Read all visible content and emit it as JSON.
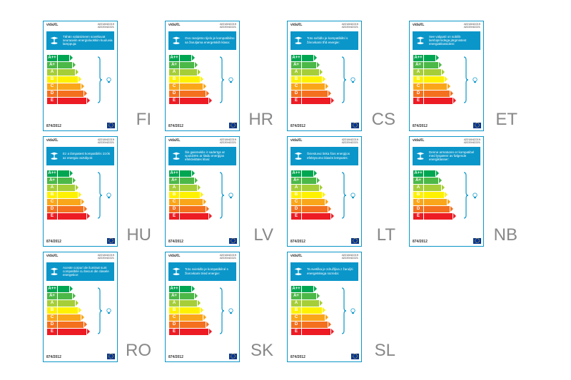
{
  "brand": "vidaXL",
  "codes_line1": "42218/42219",
  "codes_line2": "42220/42221",
  "regulation": "874/2012",
  "rating_classes": [
    {
      "letter": "A++",
      "bg": "#00a651",
      "arrow_bg": "#00a651",
      "arrow_width": 16
    },
    {
      "letter": "A+",
      "bg": "#4cb848",
      "arrow_bg": "#4cb848",
      "arrow_width": 20
    },
    {
      "letter": "A",
      "bg": "#a6ce39",
      "arrow_bg": "#a6ce39",
      "arrow_width": 24
    },
    {
      "letter": "B",
      "bg": "#fff200",
      "arrow_bg": "#fff200",
      "arrow_width": 28
    },
    {
      "letter": "C",
      "bg": "#faa61a",
      "arrow_bg": "#faa61a",
      "arrow_width": 32
    },
    {
      "letter": "D",
      "bg": "#f4701e",
      "arrow_bg": "#f4701e",
      "arrow_width": 36
    },
    {
      "letter": "E",
      "bg": "#ed1c24",
      "arrow_bg": "#ed1c24",
      "arrow_width": 40
    }
  ],
  "cards": [
    {
      "lang": "FI",
      "desc": "Tähän valaisimeen soveltuvat seuraaviin energialuokkiin kuuluvia lamppuja:"
    },
    {
      "lang": "HR",
      "desc": "Ovo rasvjetno tijelo je kompatibilno sa žaruljama energetskih klasa:"
    },
    {
      "lang": "CS",
      "desc": "Toto svítidlo je kompatibilní s žárovkami tříd energie:"
    },
    {
      "lang": "ET",
      "desc": "See valgusti on sobilik lambipirnidega järgmistest energiaklassidest:"
    },
    {
      "lang": "HU",
      "desc": "Ez a lámpatest kompatibilis izzók az energia osztályok:"
    },
    {
      "lang": "LV",
      "desc": "Šis gaismeklis ir saderīgs ar spuldzēm ar šādu enerģijas efektivitātes klasi:"
    },
    {
      "lang": "LT",
      "desc": "Šviestuvui tinka šios energijos efektyvumo klasės lemputės:"
    },
    {
      "lang": "NB",
      "desc": "Denne armaturen er kompatibel med lyspærer av følgende energiklasser:"
    },
    {
      "lang": "RO",
      "desc": "Aceste corpuri de iluminat sunt compatibile cu becuri din clasele energetice:"
    },
    {
      "lang": "SK",
      "desc": "Toto svietidlo je kompatibilné s žiarovkami tried energie:"
    },
    {
      "lang": "SL",
      "desc": "Ta svetilka je združljiva z žaruljiti energetskega razreda:"
    }
  ]
}
